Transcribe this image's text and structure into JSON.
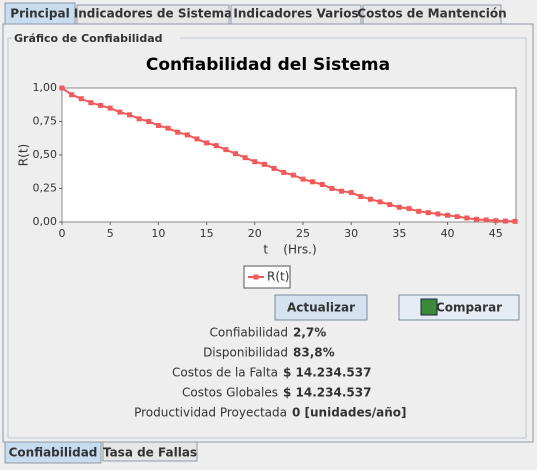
{
  "tabs": [
    "Principal",
    "Indicadores de Sistema",
    "Indicadores Varios",
    "Costos de Mantención"
  ],
  "group_title": "Gráfico de Confiabilidad",
  "chart_data": {
    "type": "line",
    "title": "Confiabilidad del Sistema",
    "y_label": "R(t)",
    "x_label": "t    (Hrs.)",
    "x": [
      0,
      1,
      2,
      3,
      4,
      5,
      6,
      7,
      8,
      9,
      10,
      11,
      12,
      13,
      14,
      15,
      16,
      17,
      18,
      19,
      20,
      21,
      22,
      23,
      24,
      25,
      26,
      27,
      28,
      29,
      30,
      31,
      32,
      33,
      34,
      35,
      36,
      37,
      38,
      39,
      40,
      41,
      42,
      43,
      44,
      45,
      46,
      47
    ],
    "series": [
      {
        "name": "R(t)",
        "color": "#f05a5a",
        "values": [
          1.0,
          0.95,
          0.92,
          0.89,
          0.87,
          0.85,
          0.82,
          0.8,
          0.77,
          0.75,
          0.72,
          0.7,
          0.67,
          0.65,
          0.62,
          0.59,
          0.57,
          0.54,
          0.51,
          0.48,
          0.45,
          0.43,
          0.4,
          0.37,
          0.35,
          0.32,
          0.3,
          0.28,
          0.25,
          0.23,
          0.22,
          0.19,
          0.17,
          0.15,
          0.13,
          0.11,
          0.1,
          0.08,
          0.07,
          0.06,
          0.05,
          0.04,
          0.03,
          0.02,
          0.015,
          0.01,
          0.007,
          0.005
        ]
      }
    ],
    "xlim": [
      0,
      47.1
    ],
    "xticks": [
      0,
      5,
      10,
      15,
      20,
      25,
      30,
      35,
      40,
      45
    ],
    "ylim": [
      0,
      1
    ],
    "yticks": [
      {
        "value": 0,
        "label": "0,00"
      },
      {
        "value": 0.25,
        "label": "0,25"
      },
      {
        "value": 0.5,
        "label": "0,50"
      },
      {
        "value": 0.75,
        "label": "0,75"
      },
      {
        "value": 1,
        "label": "1,00"
      }
    ]
  },
  "buttons": [
    "Actualizar",
    "Comparar"
  ],
  "info": [
    [
      "Confiabilidad",
      "2,7%"
    ],
    [
      "Disponibilidad",
      "83,8%"
    ],
    [
      "Costos de la Falta",
      "$ 14.234.537"
    ],
    [
      "Costos Globales",
      "$ 14.234.537"
    ],
    [
      "Productividad Proyectada",
      "0 [unidades/año]"
    ]
  ],
  "bottom_tabs": [
    "Confiabilidad",
    "Tasa de Fallas"
  ]
}
